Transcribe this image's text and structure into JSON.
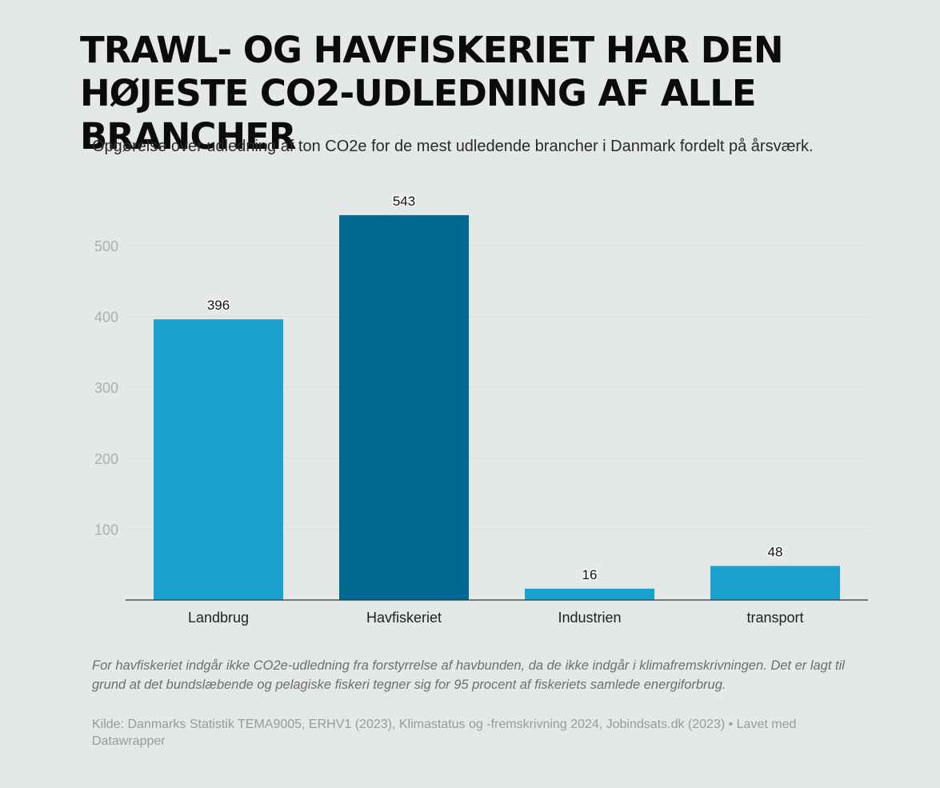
{
  "header": {
    "title": "TRAWL- OG HAVFISKERIET HAR DEN HØJESTE CO2-UDLEDNING AF ALLE BRANCHER",
    "subtitle": "Opgørelse over udledning af ton CO2e for de mest udledende brancher i Danmark fordelt på årsværk."
  },
  "chart_data": {
    "type": "bar",
    "title": "TRAWL- OG HAVFISKERIET HAR DEN HØJESTE CO2-UDLEDNING AF ALLE BRANCHER",
    "subtitle": "Opgørelse over udledning af ton CO2e for de mest udledende brancher i Danmark fordelt på årsværk.",
    "categories": [
      "Landbrug",
      "Havfiskeriet",
      "Industrien",
      "transport"
    ],
    "values": [
      396,
      543,
      16,
      48
    ],
    "colors": [
      "#1aa1cd",
      "#006a93",
      "#1aa1cd",
      "#1aa1cd"
    ],
    "yticks": [
      100,
      200,
      300,
      400,
      500
    ],
    "ylim": [
      0,
      560
    ],
    "grid": true,
    "xlabel": "",
    "ylabel": ""
  },
  "footer": {
    "note": "For havfiskeriet indgår ikke CO2e-udledning fra forstyrrelse af havbunden, da de ikke indgår i klimafremskrivningen. Det er lagt til grund at det bundslæbende og pelagiske fiskeri tegner sig for 95 procent af fiskeriets samlede energiforbrug.",
    "source": "Kilde: Danmarks Statistik TEMA9005, ERHV1 (2023), Klimastatus og -fremskrivning 2024, Jobindsats.dk (2023) • Lavet med Datawrapper"
  }
}
